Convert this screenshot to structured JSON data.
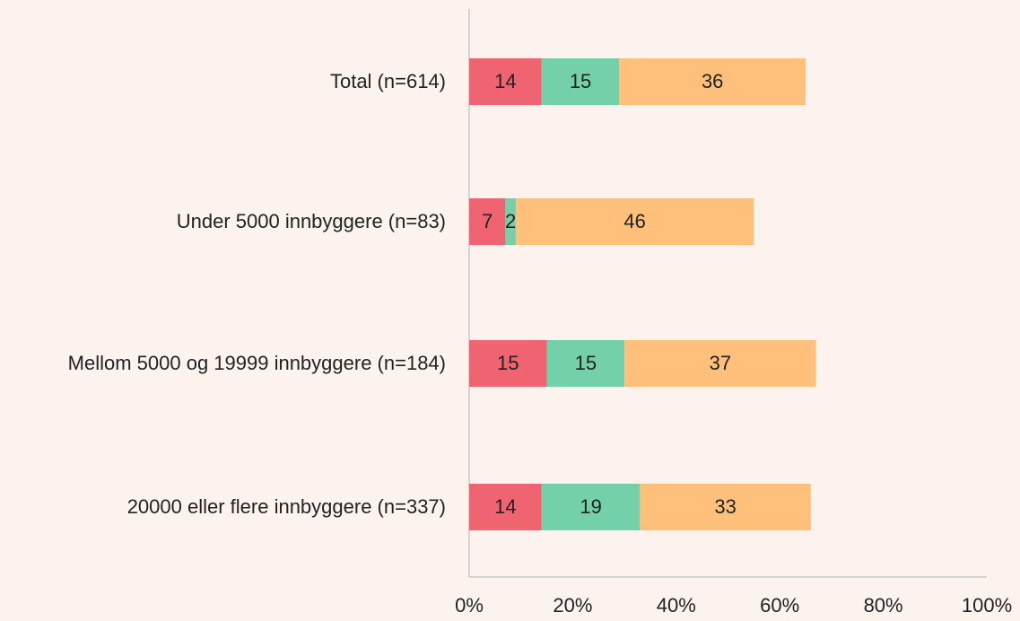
{
  "chart_data": {
    "type": "stacked-bar-horizontal",
    "categories": [
      "Total (n=614)",
      "Under 5000 innbyggere (n=83)",
      "Mellom 5000 og 19999 innbyggere (n=184)",
      "20000 eller flere innbyggere (n=337)"
    ],
    "series": [
      {
        "color": "#f06472",
        "values": [
          14,
          7,
          15,
          14
        ]
      },
      {
        "color": "#74d0a8",
        "values": [
          15,
          2,
          15,
          19
        ]
      },
      {
        "color": "#ffc07c",
        "values": [
          36,
          46,
          37,
          33
        ]
      }
    ],
    "xlim": [
      0,
      100
    ],
    "xticks": [
      {
        "value": 0,
        "label": "0%"
      },
      {
        "value": 20,
        "label": "20%"
      },
      {
        "value": 40,
        "label": "40%"
      },
      {
        "value": 60,
        "label": "60%"
      },
      {
        "value": 80,
        "label": "80%"
      },
      {
        "value": 100,
        "label": "100%"
      }
    ]
  }
}
